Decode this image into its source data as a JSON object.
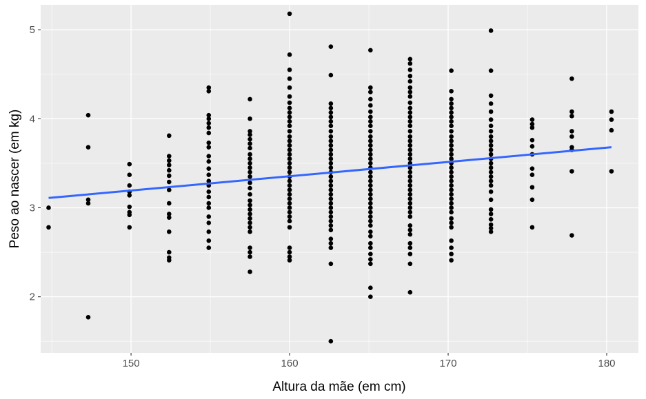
{
  "chart_data": {
    "type": "scatter",
    "xlabel": "Altura da mãe (em cm)",
    "ylabel": "Peso ao nascer (em kg)",
    "xlim": [
      144.3,
      182.0
    ],
    "ylim": [
      1.37,
      5.28
    ],
    "x_ticks": [
      150,
      160,
      170,
      180
    ],
    "x_tick_labels": [
      "150",
      "160",
      "170",
      "180"
    ],
    "y_ticks": [
      2,
      3,
      4,
      5
    ],
    "y_tick_labels": [
      "2",
      "3",
      "4",
      "5"
    ],
    "grid": true,
    "legend": "none",
    "colors": {
      "panel": "#ebebeb",
      "grid": "#ffffff",
      "points": "#000000",
      "trend": "#3366ff",
      "tick_text": "#4d4d4d"
    },
    "points": [
      [
        144.8,
        3.0
      ],
      [
        144.8,
        2.78
      ],
      [
        147.3,
        4.04
      ],
      [
        147.3,
        3.68
      ],
      [
        147.3,
        3.09
      ],
      [
        147.3,
        3.05
      ],
      [
        147.3,
        1.77
      ],
      [
        149.9,
        3.49
      ],
      [
        149.9,
        3.37
      ],
      [
        149.9,
        3.25
      ],
      [
        149.9,
        3.18
      ],
      [
        149.9,
        3.14
      ],
      [
        149.9,
        3.01
      ],
      [
        149.9,
        2.95
      ],
      [
        149.9,
        2.92
      ],
      [
        149.9,
        2.78
      ],
      [
        152.4,
        3.81
      ],
      [
        152.4,
        3.58
      ],
      [
        152.4,
        3.53
      ],
      [
        152.4,
        3.48
      ],
      [
        152.4,
        3.42
      ],
      [
        152.4,
        3.36
      ],
      [
        152.4,
        3.29
      ],
      [
        152.4,
        3.2
      ],
      [
        152.4,
        3.05
      ],
      [
        152.4,
        2.93
      ],
      [
        152.4,
        2.89
      ],
      [
        152.4,
        2.73
      ],
      [
        152.4,
        2.5
      ],
      [
        152.4,
        2.44
      ],
      [
        152.4,
        2.41
      ],
      [
        154.9,
        4.35
      ],
      [
        154.9,
        4.31
      ],
      [
        154.9,
        4.04
      ],
      [
        154.9,
        4.0
      ],
      [
        154.9,
        3.95
      ],
      [
        154.9,
        3.9
      ],
      [
        154.9,
        3.84
      ],
      [
        154.9,
        3.73
      ],
      [
        154.9,
        3.68
      ],
      [
        154.9,
        3.58
      ],
      [
        154.9,
        3.52
      ],
      [
        154.9,
        3.44
      ],
      [
        154.9,
        3.37
      ],
      [
        154.9,
        3.3
      ],
      [
        154.9,
        3.25
      ],
      [
        154.9,
        3.18
      ],
      [
        154.9,
        3.12
      ],
      [
        154.9,
        3.05
      ],
      [
        154.9,
        3.0
      ],
      [
        154.9,
        2.9
      ],
      [
        154.9,
        2.83
      ],
      [
        154.9,
        2.73
      ],
      [
        154.9,
        2.63
      ],
      [
        154.9,
        2.55
      ],
      [
        157.5,
        4.22
      ],
      [
        157.5,
        4.0
      ],
      [
        157.5,
        3.86
      ],
      [
        157.5,
        3.82
      ],
      [
        157.5,
        3.77
      ],
      [
        157.5,
        3.72
      ],
      [
        157.5,
        3.67
      ],
      [
        157.5,
        3.6
      ],
      [
        157.5,
        3.55
      ],
      [
        157.5,
        3.5
      ],
      [
        157.5,
        3.45
      ],
      [
        157.5,
        3.4
      ],
      [
        157.5,
        3.35
      ],
      [
        157.5,
        3.28
      ],
      [
        157.5,
        3.22
      ],
      [
        157.5,
        3.15
      ],
      [
        157.5,
        3.08
      ],
      [
        157.5,
        3.03
      ],
      [
        157.5,
        2.98
      ],
      [
        157.5,
        2.93
      ],
      [
        157.5,
        2.88
      ],
      [
        157.5,
        2.83
      ],
      [
        157.5,
        2.78
      ],
      [
        157.5,
        2.73
      ],
      [
        157.5,
        2.55
      ],
      [
        157.5,
        2.5
      ],
      [
        157.5,
        2.45
      ],
      [
        157.5,
        2.28
      ],
      [
        160.0,
        5.18
      ],
      [
        160.0,
        4.72
      ],
      [
        160.0,
        4.55
      ],
      [
        160.0,
        4.45
      ],
      [
        160.0,
        4.35
      ],
      [
        160.0,
        4.25
      ],
      [
        160.0,
        4.18
      ],
      [
        160.0,
        4.12
      ],
      [
        160.0,
        4.07
      ],
      [
        160.0,
        4.02
      ],
      [
        160.0,
        3.97
      ],
      [
        160.0,
        3.92
      ],
      [
        160.0,
        3.86
      ],
      [
        160.0,
        3.8
      ],
      [
        160.0,
        3.75
      ],
      [
        160.0,
        3.7
      ],
      [
        160.0,
        3.65
      ],
      [
        160.0,
        3.6
      ],
      [
        160.0,
        3.55
      ],
      [
        160.0,
        3.5
      ],
      [
        160.0,
        3.45
      ],
      [
        160.0,
        3.4
      ],
      [
        160.0,
        3.35
      ],
      [
        160.0,
        3.3
      ],
      [
        160.0,
        3.25
      ],
      [
        160.0,
        3.2
      ],
      [
        160.0,
        3.15
      ],
      [
        160.0,
        3.1
      ],
      [
        160.0,
        3.05
      ],
      [
        160.0,
        3.0
      ],
      [
        160.0,
        2.95
      ],
      [
        160.0,
        2.9
      ],
      [
        160.0,
        2.85
      ],
      [
        160.0,
        2.78
      ],
      [
        160.0,
        2.55
      ],
      [
        160.0,
        2.5
      ],
      [
        160.0,
        2.45
      ],
      [
        160.0,
        2.41
      ],
      [
        162.6,
        4.81
      ],
      [
        162.6,
        4.49
      ],
      [
        162.6,
        4.17
      ],
      [
        162.6,
        4.12
      ],
      [
        162.6,
        4.07
      ],
      [
        162.6,
        4.02
      ],
      [
        162.6,
        3.97
      ],
      [
        162.6,
        3.92
      ],
      [
        162.6,
        3.86
      ],
      [
        162.6,
        3.8
      ],
      [
        162.6,
        3.75
      ],
      [
        162.6,
        3.7
      ],
      [
        162.6,
        3.65
      ],
      [
        162.6,
        3.6
      ],
      [
        162.6,
        3.55
      ],
      [
        162.6,
        3.5
      ],
      [
        162.6,
        3.45
      ],
      [
        162.6,
        3.4
      ],
      [
        162.6,
        3.35
      ],
      [
        162.6,
        3.3
      ],
      [
        162.6,
        3.25
      ],
      [
        162.6,
        3.2
      ],
      [
        162.6,
        3.15
      ],
      [
        162.6,
        3.1
      ],
      [
        162.6,
        3.05
      ],
      [
        162.6,
        3.0
      ],
      [
        162.6,
        2.95
      ],
      [
        162.6,
        2.9
      ],
      [
        162.6,
        2.85
      ],
      [
        162.6,
        2.8
      ],
      [
        162.6,
        2.75
      ],
      [
        162.6,
        2.65
      ],
      [
        162.6,
        2.6
      ],
      [
        162.6,
        2.55
      ],
      [
        162.6,
        2.37
      ],
      [
        162.6,
        1.5
      ],
      [
        165.1,
        4.77
      ],
      [
        165.1,
        4.35
      ],
      [
        165.1,
        4.3
      ],
      [
        165.1,
        4.22
      ],
      [
        165.1,
        4.15
      ],
      [
        165.1,
        4.08
      ],
      [
        165.1,
        4.02
      ],
      [
        165.1,
        3.97
      ],
      [
        165.1,
        3.92
      ],
      [
        165.1,
        3.86
      ],
      [
        165.1,
        3.8
      ],
      [
        165.1,
        3.75
      ],
      [
        165.1,
        3.7
      ],
      [
        165.1,
        3.65
      ],
      [
        165.1,
        3.6
      ],
      [
        165.1,
        3.55
      ],
      [
        165.1,
        3.5
      ],
      [
        165.1,
        3.45
      ],
      [
        165.1,
        3.4
      ],
      [
        165.1,
        3.35
      ],
      [
        165.1,
        3.3
      ],
      [
        165.1,
        3.25
      ],
      [
        165.1,
        3.2
      ],
      [
        165.1,
        3.15
      ],
      [
        165.1,
        3.1
      ],
      [
        165.1,
        3.05
      ],
      [
        165.1,
        3.0
      ],
      [
        165.1,
        2.95
      ],
      [
        165.1,
        2.9
      ],
      [
        165.1,
        2.85
      ],
      [
        165.1,
        2.8
      ],
      [
        165.1,
        2.73
      ],
      [
        165.1,
        2.68
      ],
      [
        165.1,
        2.6
      ],
      [
        165.1,
        2.55
      ],
      [
        165.1,
        2.48
      ],
      [
        165.1,
        2.42
      ],
      [
        165.1,
        2.37
      ],
      [
        165.1,
        2.1
      ],
      [
        165.1,
        2.0
      ],
      [
        167.6,
        4.67
      ],
      [
        167.6,
        4.62
      ],
      [
        167.6,
        4.55
      ],
      [
        167.6,
        4.48
      ],
      [
        167.6,
        4.42
      ],
      [
        167.6,
        4.35
      ],
      [
        167.6,
        4.3
      ],
      [
        167.6,
        4.25
      ],
      [
        167.6,
        4.18
      ],
      [
        167.6,
        4.12
      ],
      [
        167.6,
        4.07
      ],
      [
        167.6,
        4.02
      ],
      [
        167.6,
        3.97
      ],
      [
        167.6,
        3.92
      ],
      [
        167.6,
        3.86
      ],
      [
        167.6,
        3.8
      ],
      [
        167.6,
        3.75
      ],
      [
        167.6,
        3.7
      ],
      [
        167.6,
        3.65
      ],
      [
        167.6,
        3.6
      ],
      [
        167.6,
        3.55
      ],
      [
        167.6,
        3.5
      ],
      [
        167.6,
        3.45
      ],
      [
        167.6,
        3.4
      ],
      [
        167.6,
        3.35
      ],
      [
        167.6,
        3.3
      ],
      [
        167.6,
        3.25
      ],
      [
        167.6,
        3.2
      ],
      [
        167.6,
        3.15
      ],
      [
        167.6,
        3.1
      ],
      [
        167.6,
        3.05
      ],
      [
        167.6,
        3.0
      ],
      [
        167.6,
        2.95
      ],
      [
        167.6,
        2.9
      ],
      [
        167.6,
        2.8
      ],
      [
        167.6,
        2.75
      ],
      [
        167.6,
        2.7
      ],
      [
        167.6,
        2.6
      ],
      [
        167.6,
        2.55
      ],
      [
        167.6,
        2.48
      ],
      [
        167.6,
        2.37
      ],
      [
        167.6,
        2.05
      ],
      [
        170.2,
        4.54
      ],
      [
        170.2,
        4.31
      ],
      [
        170.2,
        4.22
      ],
      [
        170.2,
        4.17
      ],
      [
        170.2,
        4.12
      ],
      [
        170.2,
        4.07
      ],
      [
        170.2,
        4.02
      ],
      [
        170.2,
        3.97
      ],
      [
        170.2,
        3.92
      ],
      [
        170.2,
        3.86
      ],
      [
        170.2,
        3.8
      ],
      [
        170.2,
        3.75
      ],
      [
        170.2,
        3.7
      ],
      [
        170.2,
        3.65
      ],
      [
        170.2,
        3.6
      ],
      [
        170.2,
        3.55
      ],
      [
        170.2,
        3.5
      ],
      [
        170.2,
        3.45
      ],
      [
        170.2,
        3.4
      ],
      [
        170.2,
        3.35
      ],
      [
        170.2,
        3.3
      ],
      [
        170.2,
        3.25
      ],
      [
        170.2,
        3.2
      ],
      [
        170.2,
        3.15
      ],
      [
        170.2,
        3.1
      ],
      [
        170.2,
        3.05
      ],
      [
        170.2,
        3.0
      ],
      [
        170.2,
        2.95
      ],
      [
        170.2,
        2.88
      ],
      [
        170.2,
        2.83
      ],
      [
        170.2,
        2.78
      ],
      [
        170.2,
        2.63
      ],
      [
        170.2,
        2.55
      ],
      [
        170.2,
        2.48
      ],
      [
        170.2,
        2.41
      ],
      [
        172.7,
        4.99
      ],
      [
        172.7,
        4.54
      ],
      [
        172.7,
        4.26
      ],
      [
        172.7,
        4.17
      ],
      [
        172.7,
        4.08
      ],
      [
        172.7,
        3.99
      ],
      [
        172.7,
        3.92
      ],
      [
        172.7,
        3.86
      ],
      [
        172.7,
        3.8
      ],
      [
        172.7,
        3.75
      ],
      [
        172.7,
        3.7
      ],
      [
        172.7,
        3.65
      ],
      [
        172.7,
        3.6
      ],
      [
        172.7,
        3.55
      ],
      [
        172.7,
        3.5
      ],
      [
        172.7,
        3.45
      ],
      [
        172.7,
        3.4
      ],
      [
        172.7,
        3.35
      ],
      [
        172.7,
        3.3
      ],
      [
        172.7,
        3.25
      ],
      [
        172.7,
        3.18
      ],
      [
        172.7,
        3.09
      ],
      [
        172.7,
        2.98
      ],
      [
        172.7,
        2.93
      ],
      [
        172.7,
        2.87
      ],
      [
        172.7,
        2.81
      ],
      [
        172.7,
        2.77
      ],
      [
        172.7,
        2.73
      ],
      [
        175.3,
        3.99
      ],
      [
        175.3,
        3.94
      ],
      [
        175.3,
        3.9
      ],
      [
        175.3,
        3.76
      ],
      [
        175.3,
        3.69
      ],
      [
        175.3,
        3.6
      ],
      [
        175.3,
        3.44
      ],
      [
        175.3,
        3.37
      ],
      [
        175.3,
        3.23
      ],
      [
        175.3,
        3.09
      ],
      [
        175.3,
        2.78
      ],
      [
        177.8,
        4.45
      ],
      [
        177.8,
        4.08
      ],
      [
        177.8,
        4.03
      ],
      [
        177.8,
        3.86
      ],
      [
        177.8,
        3.8
      ],
      [
        177.8,
        3.68
      ],
      [
        177.8,
        3.65
      ],
      [
        177.8,
        3.41
      ],
      [
        177.8,
        2.69
      ],
      [
        180.3,
        4.08
      ],
      [
        180.3,
        3.99
      ],
      [
        180.3,
        3.87
      ],
      [
        180.3,
        3.41
      ]
    ],
    "trend_line": {
      "x": [
        144.8,
        180.3
      ],
      "y": [
        3.11,
        3.68
      ]
    }
  }
}
